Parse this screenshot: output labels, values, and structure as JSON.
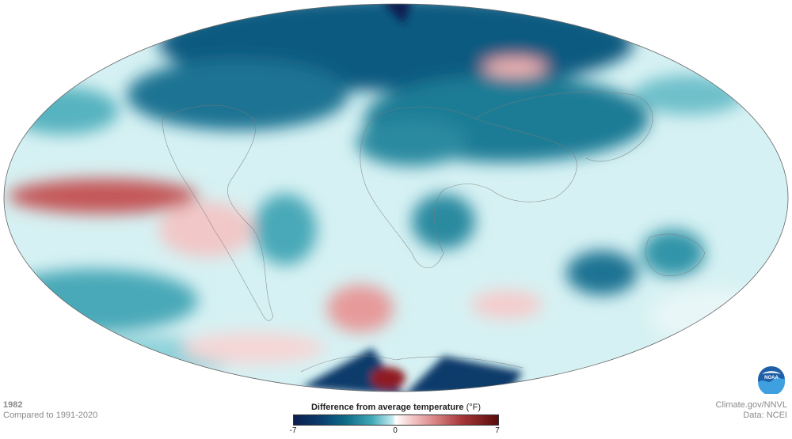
{
  "map": {
    "year": "1982",
    "comparison": "Compared to 1991-2020",
    "legend": {
      "title": "Difference from average temperature",
      "unit": "(°F)",
      "ticks": [
        "-7",
        "0",
        "7"
      ],
      "min": -7,
      "max": 7,
      "colors": {
        "cold_extreme": "#0b1f4f",
        "cold": "#0e6a86",
        "neutral": "#ffffff",
        "warm": "#dc8a8a",
        "warm_extreme": "#5a0c0c"
      }
    },
    "credit": {
      "source": "Climate.gov/NNVL",
      "data": "Data: NCEI"
    },
    "logo": "noaa-logo",
    "projection": "mollweide"
  }
}
